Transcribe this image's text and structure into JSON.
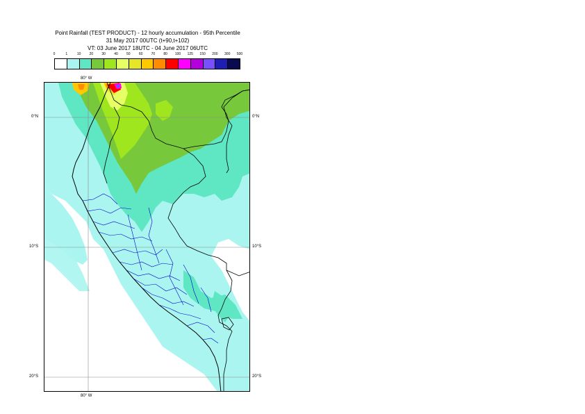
{
  "title": {
    "line1": "Point Rainfall (TEST PRODUCT) - 12 hourly accumulation - 95th Percentile",
    "line2": "31 May 2017 00UTC (t+90,t+102)",
    "line3": "VT: 03 June 2017 18UTC - 04 June 2017 06UTC"
  },
  "legend": {
    "thresholds": [
      "0",
      "1",
      "10",
      "20",
      "30",
      "40",
      "50",
      "60",
      "70",
      "80",
      "100",
      "125",
      "150",
      "200",
      "300",
      "500"
    ],
    "colors": [
      "#ffffff",
      "#aaf5f0",
      "#5fe6c3",
      "#78c83c",
      "#a0e61e",
      "#e6ff64",
      "#e6e628",
      "#ffc800",
      "#ff8c00",
      "#ff0000",
      "#ff00ff",
      "#b400dc",
      "#7850ff",
      "#1e1eb4",
      "#0a0a50"
    ]
  },
  "grid": {
    "lon_top": "80° W",
    "lon_bottom": "80° W",
    "lat_labels": [
      "0°N",
      "10°S",
      "20°S"
    ]
  },
  "colors": {
    "coast": "#000000",
    "borders_internal": "#0000cc",
    "grid": "#888888",
    "frame": "#000000"
  }
}
